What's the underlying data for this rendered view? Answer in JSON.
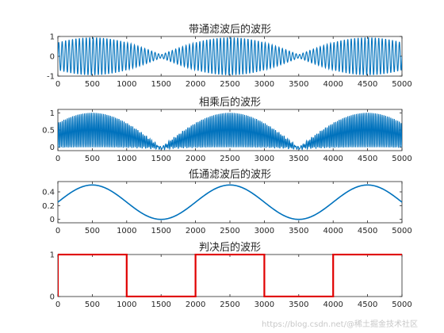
{
  "watermark": "https://blog.csdn.net/@稀土掘金技术社区",
  "chart_data": [
    {
      "type": "line",
      "title": "带通滤波后的波形",
      "xlim": [
        0,
        5000
      ],
      "ylim": [
        -1,
        1
      ],
      "xticks": [
        0,
        500,
        1000,
        1500,
        2000,
        2500,
        3000,
        3500,
        4000,
        4500,
        5000
      ],
      "yticks": [
        -1,
        0,
        1
      ],
      "color": "#0072bd",
      "signal": "bandpass",
      "series": [
        {
          "x_start": 0,
          "x_end": 5000,
          "envelope_peaks_at": [
            500,
            2500,
            4500
          ],
          "envelope_nulls_at": [
            1500,
            3500
          ],
          "amplitude": 0.95
        }
      ]
    },
    {
      "type": "line",
      "title": "相乘后的波形",
      "xlim": [
        0,
        5000
      ],
      "ylim": [
        -0.1,
        1.1
      ],
      "xticks": [
        0,
        500,
        1000,
        1500,
        2000,
        2500,
        3000,
        3500,
        4000,
        4500,
        5000
      ],
      "yticks": [
        0,
        0.5,
        1
      ],
      "color": "#0072bd",
      "signal": "product",
      "series": [
        {
          "x_start": 0,
          "x_end": 5000,
          "envelope_peaks_at": [
            500,
            2500,
            4500
          ],
          "envelope_nulls_at": [
            1500,
            3500
          ],
          "amplitude": 1.0
        }
      ]
    },
    {
      "type": "line",
      "title": "低通滤波后的波形",
      "xlim": [
        0,
        5000
      ],
      "ylim": [
        -0.05,
        0.55
      ],
      "xticks": [
        0,
        500,
        1000,
        1500,
        2000,
        2500,
        3000,
        3500,
        4000,
        4500,
        5000
      ],
      "yticks": [
        0,
        0.2,
        0.4
      ],
      "color": "#0072bd",
      "signal": "lowpass",
      "series": [
        {
          "x_start": 0,
          "x_end": 5000,
          "peaks_at": [
            500,
            2500,
            4500
          ],
          "troughs_at": [
            1500,
            3500
          ],
          "max": 0.5,
          "min": 0
        }
      ]
    },
    {
      "type": "line",
      "title": "判决后的波形",
      "xlim": [
        0,
        5000
      ],
      "ylim": [
        0,
        1
      ],
      "xticks": [
        0,
        500,
        1000,
        1500,
        2000,
        2500,
        3000,
        3500,
        4000,
        4500,
        5000
      ],
      "yticks": [
        0,
        1
      ],
      "color": "#e00000",
      "signal": "decision",
      "series": [
        {
          "levels": [
            [
              0,
              1000,
              1
            ],
            [
              1000,
              2000,
              0
            ],
            [
              2000,
              3000,
              1
            ],
            [
              3000,
              4000,
              0
            ],
            [
              4000,
              5000,
              1
            ]
          ]
        }
      ]
    }
  ]
}
